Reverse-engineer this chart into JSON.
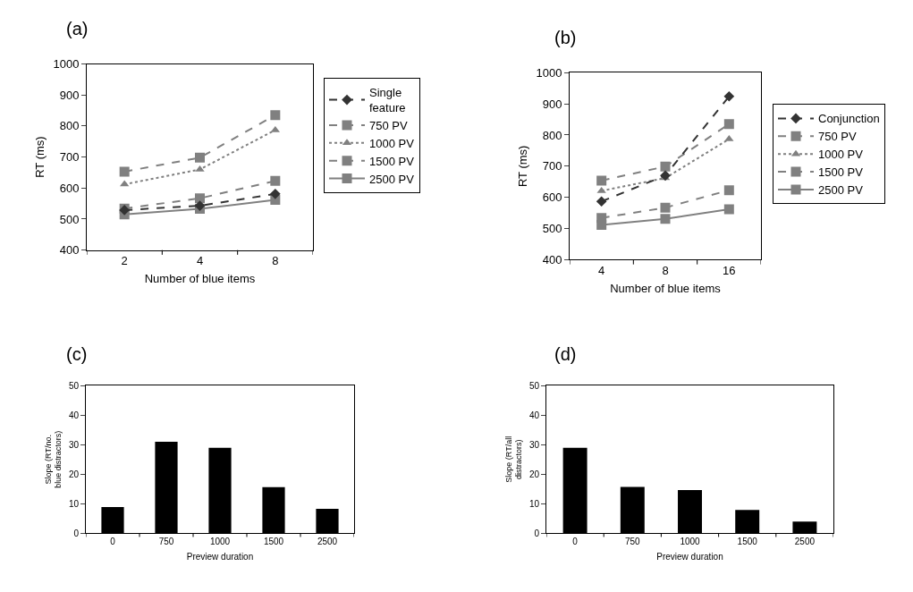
{
  "chart_data": [
    {
      "type": "line",
      "title": "(a)",
      "categories": [
        "2",
        "4",
        "8"
      ],
      "xlabel": "Number of blue items",
      "ylabel": "RT (ms)",
      "ylim": [
        400,
        1000
      ],
      "yticks": [
        400,
        500,
        600,
        700,
        800,
        900,
        1000
      ],
      "grid": false,
      "legend": "right",
      "series": [
        {
          "name": "Single feature",
          "color": "#333333",
          "marker": "diamond",
          "line_style": "dashed",
          "values": [
            529,
            543,
            581
          ]
        },
        {
          "name": "750 PV",
          "color": "#808080",
          "marker": "square",
          "line_style": "dashed",
          "values": [
            653,
            698,
            835
          ]
        },
        {
          "name": "1000 PV",
          "color": "#808080",
          "marker": "triangle",
          "line_style": "dotted",
          "values": [
            612,
            660,
            787
          ]
        },
        {
          "name": "1500 PV",
          "color": "#808080",
          "marker": "square",
          "line_style": "dashed",
          "values": [
            534,
            567,
            623
          ]
        },
        {
          "name": "2500 PV",
          "color": "#808080",
          "marker": "square",
          "line_style": "solid",
          "values": [
            515,
            533,
            562
          ]
        }
      ]
    },
    {
      "type": "line",
      "title": "(b)",
      "categories": [
        "4",
        "8",
        "16"
      ],
      "xlabel": "Number of blue items",
      "ylabel": "RT (ms)",
      "ylim": [
        400,
        1000
      ],
      "yticks": [
        400,
        500,
        600,
        700,
        800,
        900,
        1000
      ],
      "grid": false,
      "legend": "right",
      "series": [
        {
          "name": "Conjunction",
          "color": "#333333",
          "marker": "diamond",
          "line_style": "dashed",
          "values": [
            587,
            670,
            924
          ]
        },
        {
          "name": "750 PV",
          "color": "#808080",
          "marker": "square",
          "line_style": "dashed",
          "values": [
            654,
            699,
            835
          ]
        },
        {
          "name": "1000 PV",
          "color": "#808080",
          "marker": "triangle",
          "line_style": "dotted",
          "values": [
            621,
            662,
            787
          ]
        },
        {
          "name": "1500 PV",
          "color": "#808080",
          "marker": "square",
          "line_style": "dashed",
          "values": [
            534,
            567,
            623
          ]
        },
        {
          "name": "2500 PV",
          "color": "#808080",
          "marker": "square",
          "line_style": "solid",
          "values": [
            512,
            531,
            562
          ]
        }
      ]
    },
    {
      "type": "bar",
      "title": "(c)",
      "categories": [
        "0",
        "750",
        "1000",
        "1500",
        "2500"
      ],
      "xlabel": "Preview duration",
      "ylabel": "Slope (RT/no. blue distractors)",
      "ylim": [
        0,
        50
      ],
      "yticks": [
        0,
        10,
        20,
        30,
        40,
        50
      ],
      "grid": false,
      "color": "#000000",
      "values": [
        8.9,
        31.0,
        28.9,
        15.6,
        8.3
      ]
    },
    {
      "type": "bar",
      "title": "(d)",
      "categories": [
        "0",
        "750",
        "1000",
        "1500",
        "2500"
      ],
      "xlabel": "Preview duration",
      "ylabel": "Slope (RT/all distractors)",
      "ylim": [
        0,
        50
      ],
      "yticks": [
        0,
        10,
        20,
        30,
        40,
        50
      ],
      "grid": false,
      "color": "#000000",
      "values": [
        28.9,
        15.7,
        14.6,
        7.9,
        4.0
      ]
    }
  ]
}
